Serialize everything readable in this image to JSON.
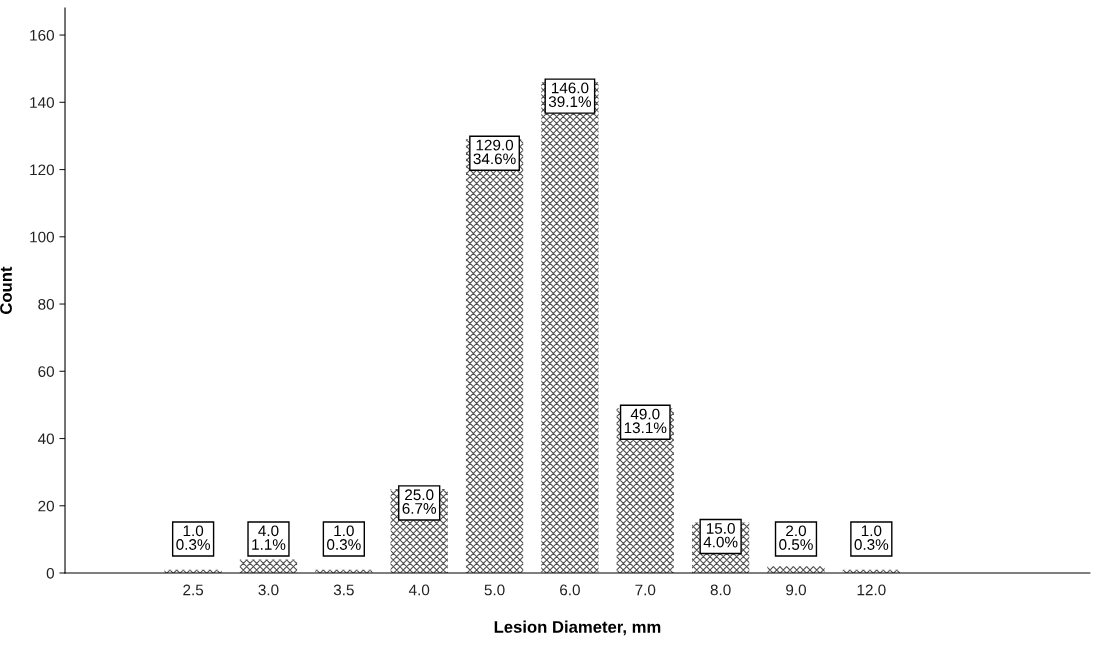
{
  "chart_data": {
    "type": "bar",
    "xlabel": "Lesion Diameter, mm",
    "ylabel": "Count",
    "categories": [
      "2.5",
      "3.0",
      "3.5",
      "4.0",
      "5.0",
      "6.0",
      "7.0",
      "8.0",
      "9.0",
      "12.0"
    ],
    "values": [
      1,
      4,
      1,
      25,
      129,
      146,
      49,
      15,
      2,
      1
    ],
    "value_labels": [
      "1.0\n0.3%",
      "4.0\n1.1%",
      "1.0\n0.3%",
      "25.0\n6.7%",
      "129.0\n34.6%",
      "146.0\n39.1%",
      "49.0\n13.1%",
      "15.0\n4.0%",
      "2.0\n0.5%",
      "1.0\n0.3%"
    ],
    "color": "#505050",
    "ylim": [
      0,
      168
    ],
    "yticks": [
      0,
      20,
      40,
      60,
      80,
      100,
      120,
      140,
      160
    ],
    "grid": false,
    "legend": false
  }
}
